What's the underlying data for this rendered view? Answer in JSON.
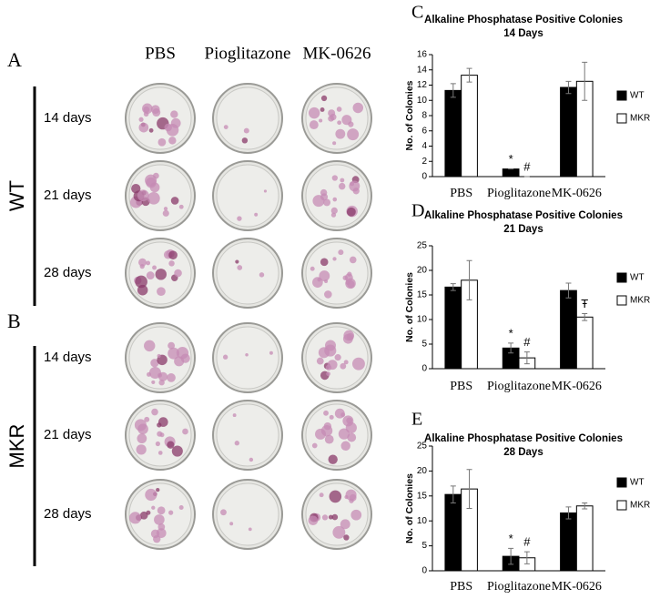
{
  "photo_panel": {
    "panel_a": "A",
    "panel_b": "B",
    "columns": [
      "PBS",
      "Pioglitazone",
      "MK-0626"
    ],
    "groups": [
      {
        "label": "WT",
        "rows": [
          "14 days",
          "21 days",
          "28 days"
        ]
      },
      {
        "label": "MKR",
        "rows": [
          "14 days",
          "21 days",
          "28 days"
        ]
      }
    ]
  },
  "chart_data": [
    {
      "type": "bar",
      "panel": "C",
      "title": "Alkaline Phosphatase Positive Colonies",
      "subtitle": "14 Days",
      "y_label": "No. of Colonies",
      "categories": [
        "PBS",
        "Pioglitazone",
        "MK-0626"
      ],
      "series": [
        {
          "name": "WT",
          "color": "#000000",
          "values": [
            11.3,
            1,
            11.7
          ],
          "errors": [
            0.9,
            0,
            0.8
          ]
        },
        {
          "name": "MKR",
          "color": "#ffffff",
          "values": [
            13.3,
            0,
            12.5
          ],
          "errors": [
            0.9,
            0,
            2.5
          ]
        }
      ],
      "ylim": [
        0,
        16
      ],
      "yticks": [
        0,
        2,
        4,
        6,
        8,
        10,
        12,
        14,
        16
      ],
      "annotations": [
        "*",
        "#"
      ],
      "legend": "right"
    },
    {
      "type": "bar",
      "panel": "D",
      "title": "Alkaline Phosphatase Positive Colonies",
      "subtitle": "21 Days",
      "y_label": "No. of Colonies",
      "categories": [
        "PBS",
        "Pioglitazone",
        "MK-0626"
      ],
      "series": [
        {
          "name": "WT",
          "color": "#000000",
          "values": [
            16.6,
            4.2,
            15.9
          ],
          "errors": [
            0.7,
            1,
            1.5
          ]
        },
        {
          "name": "MKR",
          "color": "#ffffff",
          "values": [
            18,
            2.2,
            10.5
          ],
          "errors": [
            4,
            1.2,
            0.7
          ]
        }
      ],
      "ylim": [
        0,
        25
      ],
      "yticks": [
        0,
        5,
        10,
        15,
        20,
        25
      ],
      "annotations": [
        "*",
        "#",
        "Ŧ"
      ],
      "legend": "right"
    },
    {
      "type": "bar",
      "panel": "E",
      "title": "Alkaline Phosphatase Positive Colonies",
      "subtitle": "28 Days",
      "y_label": "No. of Colonies",
      "categories": [
        "PBS",
        "Pioglitazone",
        "MK-0626"
      ],
      "series": [
        {
          "name": "WT",
          "color": "#000000",
          "values": [
            15.3,
            2.9,
            11.6
          ],
          "errors": [
            1.7,
            1.6,
            1.2
          ]
        },
        {
          "name": "MKR",
          "color": "#ffffff",
          "values": [
            16.4,
            2.6,
            13
          ],
          "errors": [
            3.9,
            1.2,
            0.6
          ]
        }
      ],
      "ylim": [
        0,
        25
      ],
      "yticks": [
        0,
        5,
        10,
        15,
        20,
        25
      ],
      "annotations": [
        "*",
        "#"
      ],
      "legend": "right"
    }
  ]
}
